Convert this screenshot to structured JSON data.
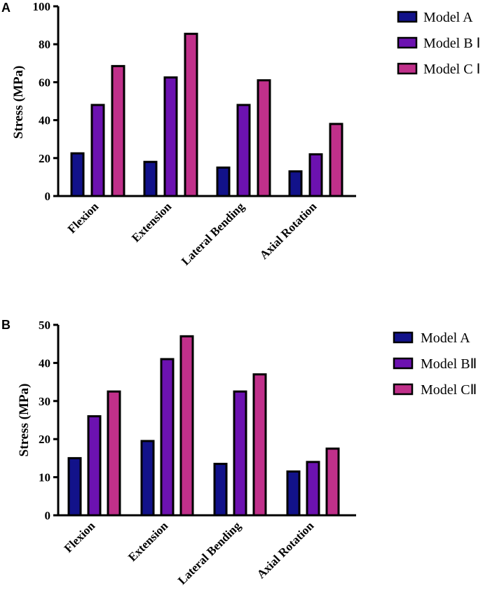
{
  "chart_data": [
    {
      "panel": "A",
      "type": "bar",
      "title": "",
      "xlabel": "",
      "ylabel": "Stress (MPa)",
      "ylim": [
        0,
        100
      ],
      "yticks": [
        0,
        20,
        40,
        60,
        80,
        100
      ],
      "categories": [
        "Flexion",
        "Extension",
        "Lateral Bending",
        "Axial Rotation"
      ],
      "series": [
        {
          "name": "Model A",
          "color": "#12128a",
          "values": [
            22.5,
            18,
            15,
            13
          ]
        },
        {
          "name": "Model B Ⅰ",
          "color": "#6c12b0",
          "values": [
            48,
            62.5,
            48,
            22
          ]
        },
        {
          "name": "Model C Ⅰ",
          "color": "#c0308a",
          "values": [
            68.5,
            85.5,
            61,
            38
          ]
        }
      ],
      "legend": "right",
      "grid": false
    },
    {
      "panel": "B",
      "type": "bar",
      "title": "",
      "xlabel": "",
      "ylabel": "Stress (MPa)",
      "ylim": [
        0,
        50
      ],
      "yticks": [
        0,
        10,
        20,
        30,
        40,
        50
      ],
      "categories": [
        "Flexion",
        "Extension",
        "Lateral Bending",
        "Axial Rotation"
      ],
      "series": [
        {
          "name": "Model A",
          "color": "#12128a",
          "values": [
            15,
            19.5,
            13.5,
            11.5
          ]
        },
        {
          "name": "Model BⅡ",
          "color": "#6c12b0",
          "values": [
            26,
            41,
            32.5,
            14
          ]
        },
        {
          "name": "Model CⅡ",
          "color": "#c0308a",
          "values": [
            32.5,
            47,
            37,
            17.5
          ]
        }
      ],
      "legend": "right",
      "grid": false
    }
  ]
}
